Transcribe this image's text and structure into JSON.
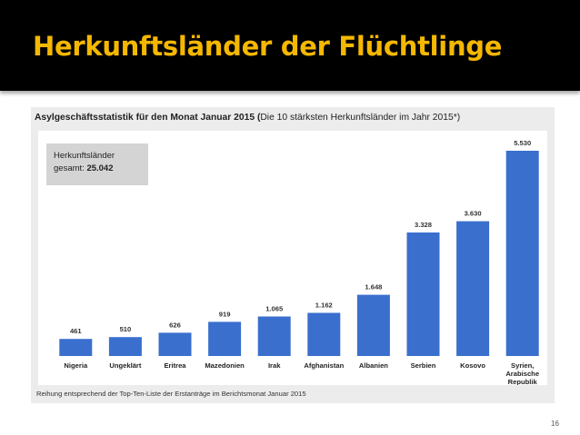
{
  "slide": {
    "title": "Herkunftsländer der Flüchtlinge",
    "title_color": "#f5b800",
    "page_number": "16"
  },
  "chart_data": {
    "type": "bar",
    "title": "Asylgeschäftsstatistik für den Monat Januar 2015",
    "title_open_paren": "(",
    "subtitle": "Die 10 stärksten Herkunftsländer im Jahr 2015*)",
    "categories": [
      [
        "Nigeria"
      ],
      [
        "Ungeklärt"
      ],
      [
        "Eritrea"
      ],
      [
        "Mazedonien"
      ],
      [
        "Irak"
      ],
      [
        "Afghanistan"
      ],
      [
        "Albanien"
      ],
      [
        "Serbien"
      ],
      [
        "Kosovo"
      ],
      [
        "Syrien,",
        "Arabische",
        "Republik"
      ]
    ],
    "values": [
      461,
      510,
      626,
      919,
      1065,
      1162,
      1648,
      3328,
      3630,
      5530
    ],
    "value_labels": [
      "461",
      "510",
      "626",
      "919",
      "1.065",
      "1.162",
      "1.648",
      "3.328",
      "3.630",
      "5.530"
    ],
    "ylim": [
      0,
      5530
    ],
    "bar_color": "#3a6fce",
    "total_box": {
      "label_line1": "Herkunftsländer",
      "label_line2": "gesamt:",
      "value": "25.042"
    },
    "footer": "Reihung entsprechend der Top-Ten-Liste der Erstanträge im Berichtsmonat Januar 2015"
  }
}
